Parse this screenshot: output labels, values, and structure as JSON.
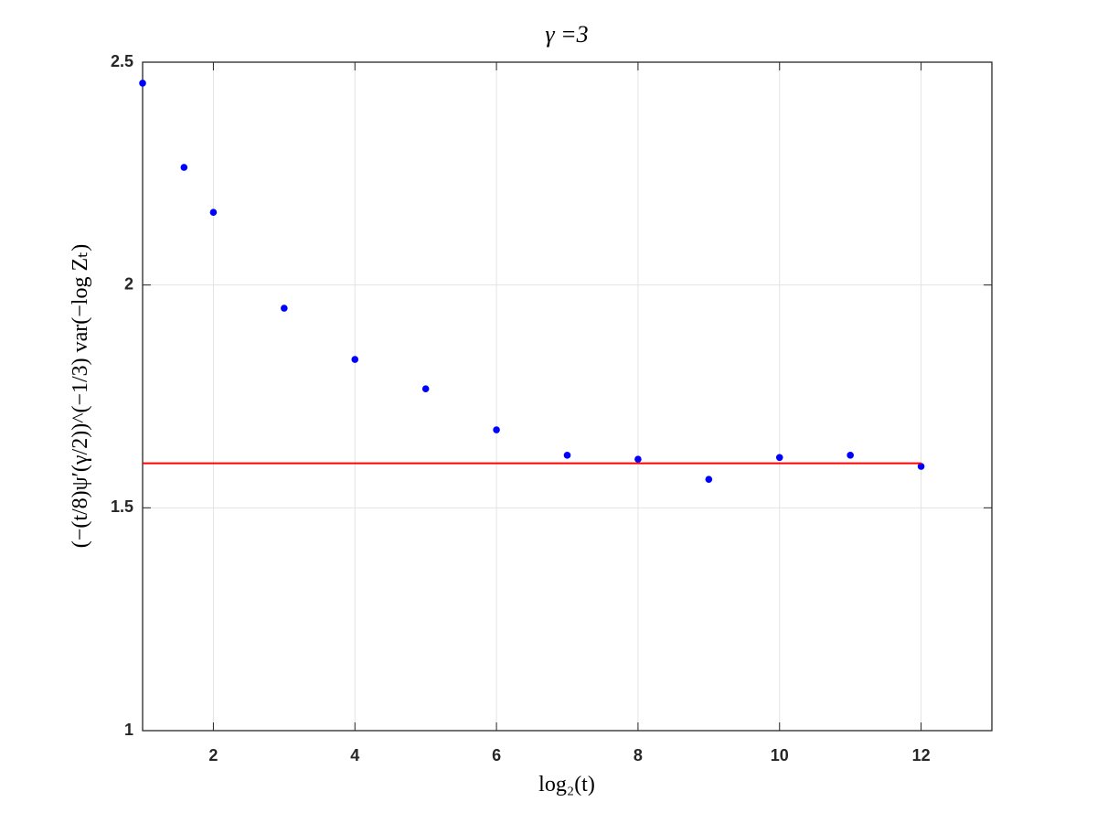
{
  "chart_data": {
    "type": "scatter",
    "title": "γ =3",
    "x_label": "log₂(t)",
    "y_label": "(−(t/8)ψ′(γ/2))^(−1/3) var(−log Zₜ)",
    "series": [
      {
        "style": "markers",
        "color": "#0000ff",
        "x": [
          1,
          1.585,
          2,
          3,
          4,
          5,
          6,
          7,
          8,
          9,
          10,
          11,
          12
        ],
        "values": [
          2.453,
          2.264,
          2.163,
          1.948,
          1.833,
          1.767,
          1.675,
          1.618,
          1.609,
          1.564,
          1.613,
          1.618,
          1.593
        ]
      },
      {
        "style": "line",
        "color": "#ff0000",
        "x": [
          1,
          12
        ],
        "values": [
          1.6,
          1.6
        ]
      }
    ],
    "xlim": [
      1,
      13
    ],
    "ylim": [
      1,
      2.5
    ],
    "xticks": [
      2,
      4,
      6,
      8,
      10,
      12
    ],
    "yticks": [
      1,
      1.5,
      2,
      2.5
    ],
    "grid": true
  }
}
